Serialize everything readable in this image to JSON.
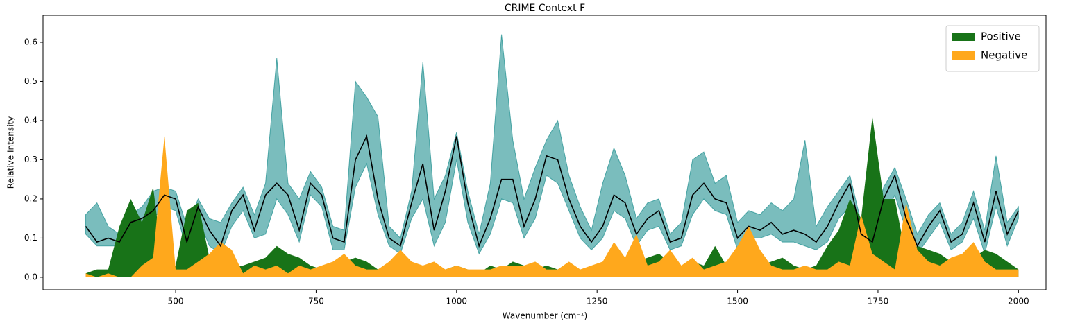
{
  "chart_data": {
    "type": "line",
    "title": "CRIME Context F",
    "x_label": "Wavenumber (cm⁻¹)",
    "y_label": "Relative Intensity",
    "xlim": [
      264,
      2049
    ],
    "ylim": [
      -0.032,
      0.669
    ],
    "xticks": [
      500,
      750,
      1000,
      1250,
      1500,
      1750,
      2000
    ],
    "yticks": [
      {
        "value": 0,
        "label": "0.0"
      },
      0.1,
      0.2,
      0.3,
      0.4,
      0.5,
      0.6
    ],
    "legend": "upper right",
    "x": [
      340,
      360,
      380,
      400,
      420,
      440,
      460,
      480,
      500,
      520,
      540,
      560,
      580,
      600,
      620,
      640,
      660,
      680,
      700,
      720,
      740,
      760,
      780,
      800,
      820,
      840,
      860,
      880,
      900,
      920,
      940,
      960,
      980,
      1000,
      1020,
      1040,
      1060,
      1080,
      1100,
      1120,
      1140,
      1160,
      1180,
      1200,
      1220,
      1240,
      1260,
      1280,
      1300,
      1320,
      1340,
      1360,
      1380,
      1400,
      1420,
      1440,
      1460,
      1480,
      1500,
      1520,
      1540,
      1560,
      1580,
      1600,
      1620,
      1640,
      1660,
      1680,
      1700,
      1720,
      1740,
      1760,
      1780,
      1800,
      1820,
      1840,
      1860,
      1880,
      1900,
      1920,
      1940,
      1960,
      1980,
      2000
    ],
    "line": {
      "color": "#000000",
      "values": [
        0.13,
        0.09,
        0.1,
        0.09,
        0.14,
        0.15,
        0.17,
        0.21,
        0.2,
        0.09,
        0.18,
        0.12,
        0.08,
        0.17,
        0.21,
        0.12,
        0.21,
        0.24,
        0.21,
        0.12,
        0.24,
        0.21,
        0.1,
        0.09,
        0.3,
        0.36,
        0.2,
        0.1,
        0.08,
        0.19,
        0.29,
        0.12,
        0.22,
        0.36,
        0.19,
        0.08,
        0.15,
        0.25,
        0.25,
        0.13,
        0.2,
        0.31,
        0.3,
        0.2,
        0.13,
        0.09,
        0.13,
        0.21,
        0.19,
        0.11,
        0.15,
        0.17,
        0.09,
        0.1,
        0.21,
        0.24,
        0.2,
        0.19,
        0.1,
        0.13,
        0.12,
        0.14,
        0.11,
        0.12,
        0.11,
        0.09,
        0.13,
        0.19,
        0.24,
        0.11,
        0.09,
        0.2,
        0.26,
        0.15,
        0.08,
        0.13,
        0.17,
        0.09,
        0.11,
        0.19,
        0.09,
        0.22,
        0.11,
        0.17
      ]
    },
    "band": {
      "color": "#008080",
      "upper": [
        0.16,
        0.19,
        0.13,
        0.11,
        0.16,
        0.18,
        0.22,
        0.23,
        0.22,
        0.13,
        0.2,
        0.15,
        0.14,
        0.19,
        0.23,
        0.16,
        0.24,
        0.56,
        0.24,
        0.2,
        0.27,
        0.23,
        0.13,
        0.12,
        0.5,
        0.46,
        0.41,
        0.13,
        0.1,
        0.22,
        0.55,
        0.2,
        0.26,
        0.37,
        0.22,
        0.11,
        0.24,
        0.62,
        0.35,
        0.2,
        0.28,
        0.35,
        0.4,
        0.26,
        0.18,
        0.12,
        0.24,
        0.33,
        0.26,
        0.15,
        0.19,
        0.2,
        0.11,
        0.14,
        0.3,
        0.32,
        0.24,
        0.26,
        0.14,
        0.17,
        0.16,
        0.19,
        0.17,
        0.2,
        0.35,
        0.13,
        0.18,
        0.22,
        0.26,
        0.14,
        0.12,
        0.23,
        0.28,
        0.2,
        0.11,
        0.16,
        0.19,
        0.11,
        0.14,
        0.22,
        0.12,
        0.31,
        0.14,
        0.18
      ],
      "lower": [
        0.11,
        0.08,
        0.08,
        0.08,
        0.12,
        0.13,
        0.15,
        0.18,
        0.17,
        0.07,
        0.15,
        0.08,
        0.06,
        0.13,
        0.17,
        0.1,
        0.11,
        0.2,
        0.16,
        0.09,
        0.21,
        0.18,
        0.07,
        0.07,
        0.23,
        0.29,
        0.16,
        0.08,
        0.06,
        0.15,
        0.2,
        0.08,
        0.14,
        0.3,
        0.14,
        0.06,
        0.11,
        0.2,
        0.19,
        0.1,
        0.15,
        0.26,
        0.24,
        0.17,
        0.1,
        0.07,
        0.1,
        0.17,
        0.15,
        0.08,
        0.12,
        0.13,
        0.07,
        0.08,
        0.16,
        0.2,
        0.17,
        0.16,
        0.07,
        0.1,
        0.1,
        0.11,
        0.09,
        0.09,
        0.08,
        0.07,
        0.09,
        0.15,
        0.18,
        0.08,
        0.07,
        0.15,
        0.21,
        0.12,
        0.06,
        0.1,
        0.14,
        0.07,
        0.09,
        0.15,
        0.06,
        0.18,
        0.08,
        0.15
      ]
    },
    "series": [
      {
        "name": "Positive",
        "color": "#187318",
        "values": [
          0.01,
          0.02,
          0.02,
          0.13,
          0.2,
          0.14,
          0.23,
          0,
          0.03,
          0.17,
          0.19,
          0.05,
          0.02,
          0.03,
          0.03,
          0.04,
          0.05,
          0.08,
          0.06,
          0.05,
          0.03,
          0.02,
          0.02,
          0.04,
          0.05,
          0.04,
          0.02,
          0.02,
          0.02,
          0.01,
          0.02,
          0.01,
          0.02,
          0.03,
          0.02,
          0.01,
          0.03,
          0.02,
          0.04,
          0.03,
          0.02,
          0.03,
          0.02,
          0.03,
          0.02,
          0.02,
          0.03,
          0.02,
          0.02,
          0.04,
          0.05,
          0.06,
          0.04,
          0.02,
          0.04,
          0.03,
          0.08,
          0.03,
          0.02,
          0.04,
          0.03,
          0.04,
          0.05,
          0.03,
          0.02,
          0.03,
          0.08,
          0.12,
          0.2,
          0.15,
          0.41,
          0.2,
          0.2,
          0.05,
          0.08,
          0.07,
          0.06,
          0.04,
          0.03,
          0.05,
          0.07,
          0.06,
          0.04,
          0.02
        ]
      },
      {
        "name": "Negative",
        "color": "#ffa81c",
        "values": [
          0.01,
          0,
          0.01,
          0,
          0,
          0.03,
          0.05,
          0.36,
          0.02,
          0.02,
          0.04,
          0.06,
          0.09,
          0.07,
          0.01,
          0.03,
          0.02,
          0.03,
          0.01,
          0.03,
          0.02,
          0.03,
          0.04,
          0.06,
          0.03,
          0.02,
          0.02,
          0.04,
          0.07,
          0.04,
          0.03,
          0.04,
          0.02,
          0.03,
          0.02,
          0.02,
          0.02,
          0.03,
          0.03,
          0.03,
          0.04,
          0.02,
          0.02,
          0.04,
          0.02,
          0.03,
          0.04,
          0.09,
          0.05,
          0.11,
          0.03,
          0.04,
          0.07,
          0.03,
          0.05,
          0.02,
          0.03,
          0.04,
          0.08,
          0.13,
          0.07,
          0.03,
          0.02,
          0.02,
          0.03,
          0.02,
          0.02,
          0.04,
          0.03,
          0.16,
          0.06,
          0.04,
          0.02,
          0.19,
          0.07,
          0.04,
          0.03,
          0.05,
          0.06,
          0.09,
          0.04,
          0.02,
          0.02,
          0.02
        ]
      }
    ]
  }
}
